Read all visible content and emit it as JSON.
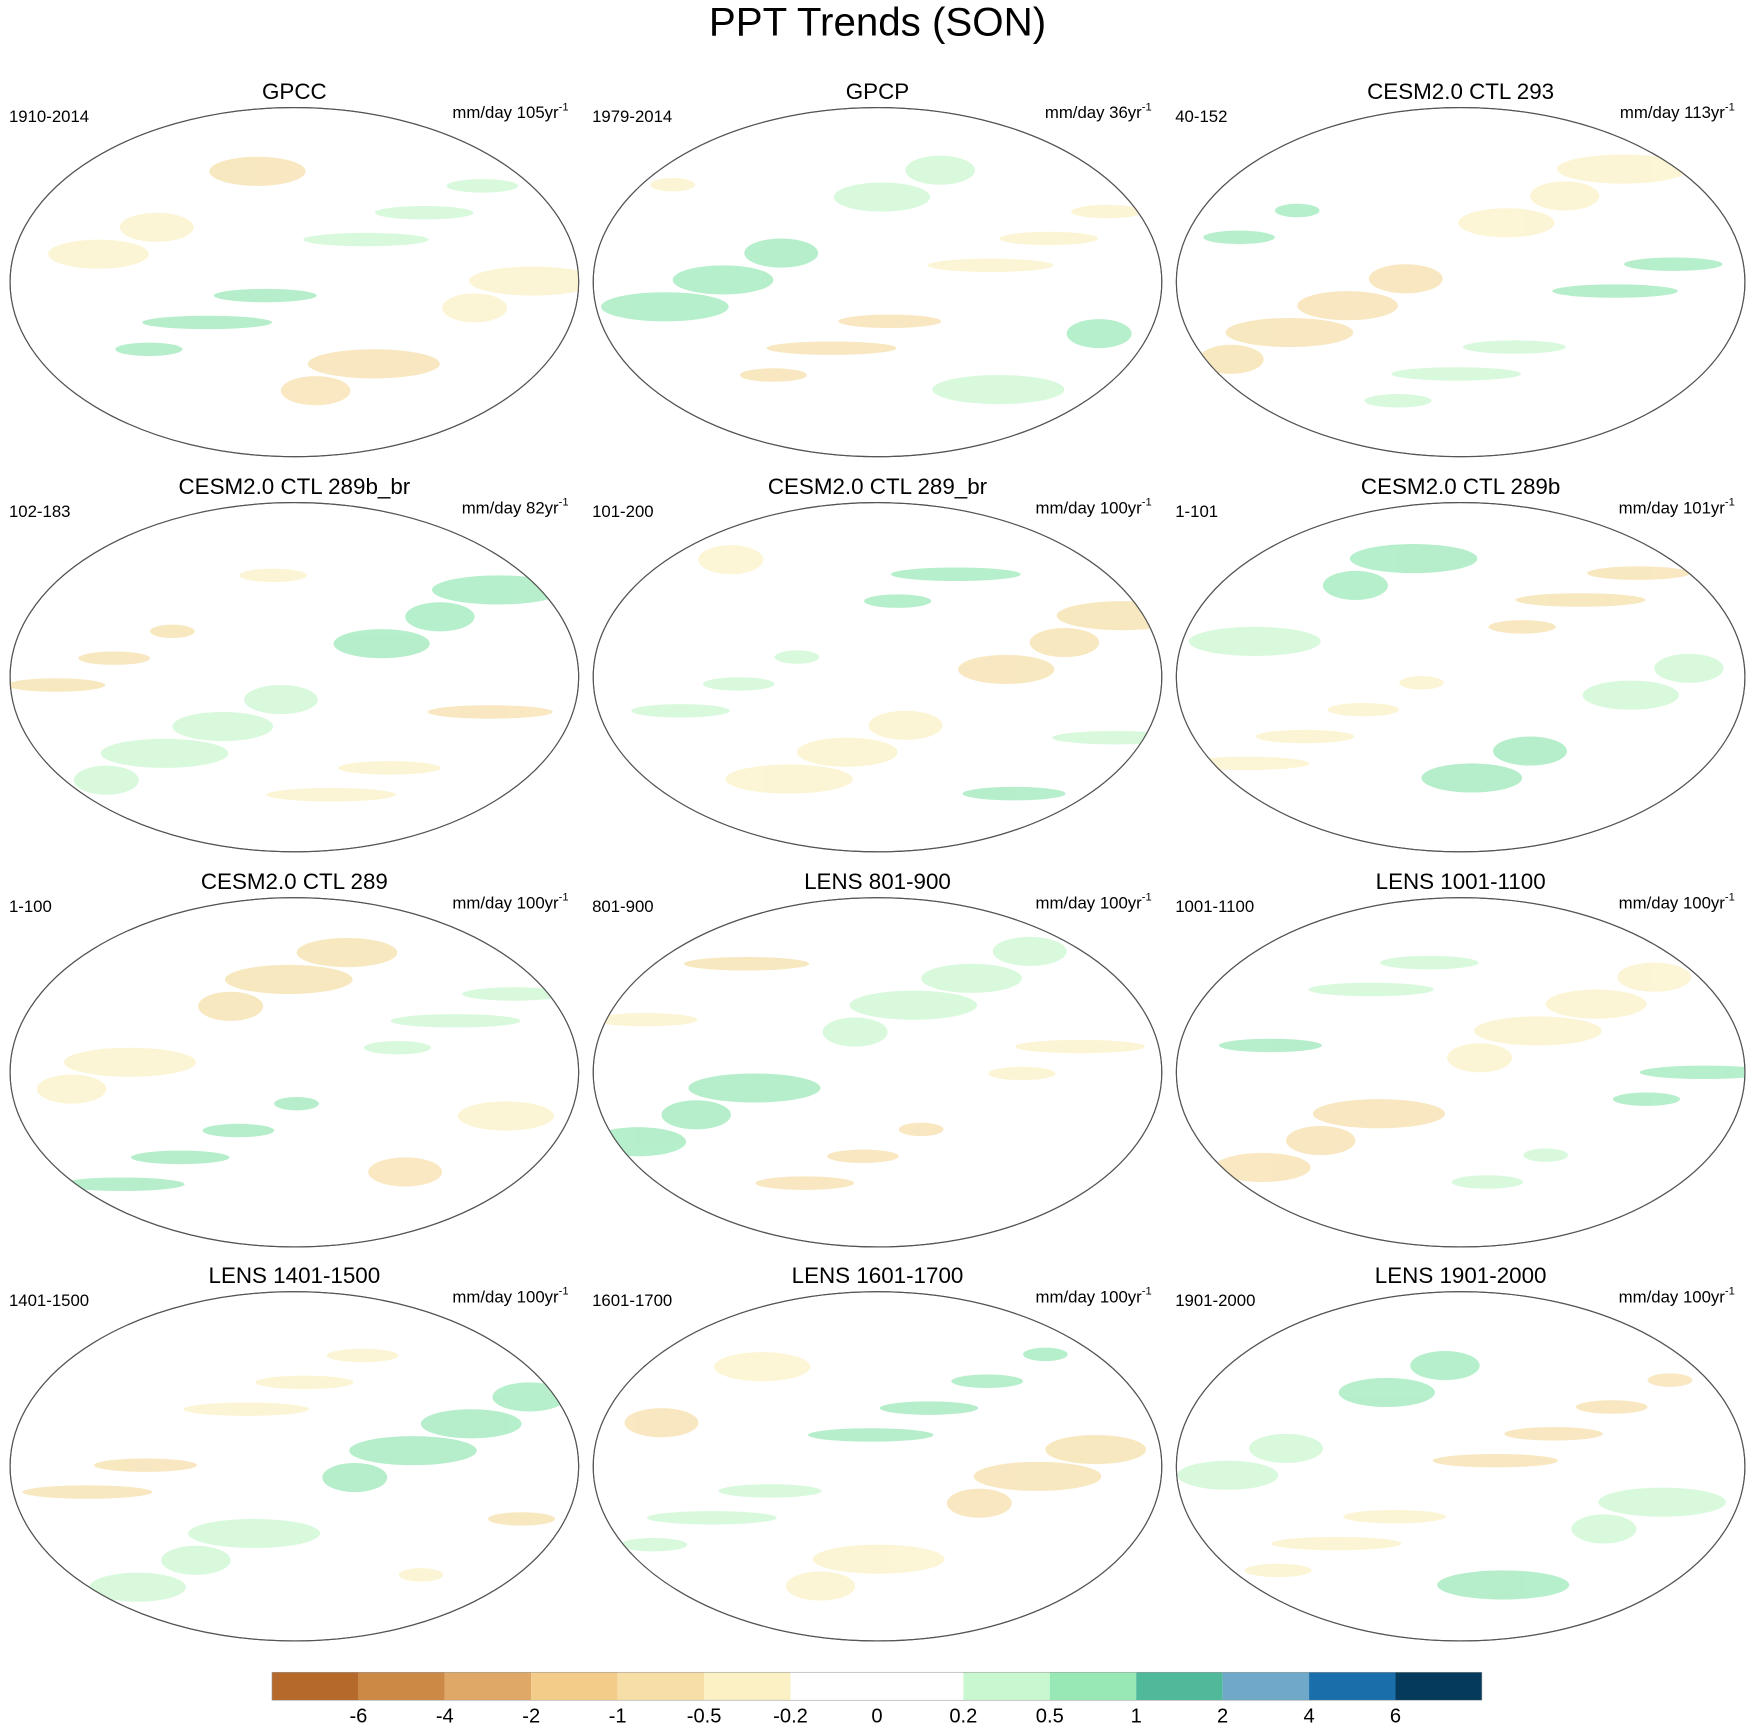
{
  "title": "PPT Trends (SON)",
  "panels": [
    {
      "title": "GPCC",
      "period": "1910-2014",
      "units": "mm/day 105yr",
      "units_exp": "-1"
    },
    {
      "title": "GPCP",
      "period": "1979-2014",
      "units": "mm/day 36yr",
      "units_exp": "-1"
    },
    {
      "title": "CESM2.0 CTL 293",
      "period": "40-152",
      "units": "mm/day 113yr",
      "units_exp": "-1"
    },
    {
      "title": "CESM2.0 CTL 289b_br",
      "period": "102-183",
      "units": "mm/day 82yr",
      "units_exp": "-1"
    },
    {
      "title": "CESM2.0 CTL 289_br",
      "period": "101-200",
      "units": "mm/day 100yr",
      "units_exp": "-1"
    },
    {
      "title": "CESM2.0 CTL 289b",
      "period": "1-101",
      "units": "mm/day 101yr",
      "units_exp": "-1"
    },
    {
      "title": "CESM2.0 CTL 289",
      "period": "1-100",
      "units": "mm/day 100yr",
      "units_exp": "-1"
    },
    {
      "title": "LENS 801-900",
      "period": "801-900",
      "units": "mm/day 100yr",
      "units_exp": "-1"
    },
    {
      "title": "LENS 1001-1100",
      "period": "1001-1100",
      "units": "mm/day 100yr",
      "units_exp": "-1"
    },
    {
      "title": "LENS 1401-1500",
      "period": "1401-1500",
      "units": "mm/day 100yr",
      "units_exp": "-1"
    },
    {
      "title": "LENS 1601-1700",
      "period": "1601-1700",
      "units": "mm/day 100yr",
      "units_exp": "-1"
    },
    {
      "title": "LENS 1901-2000",
      "period": "1901-2000",
      "units": "mm/day 100yr",
      "units_exp": "-1"
    }
  ],
  "colorbar": {
    "levels": [
      -6,
      -4,
      -2,
      -1,
      -0.5,
      -0.2,
      0,
      0.2,
      0.5,
      1,
      2,
      4,
      6
    ],
    "colors": [
      "#b5692a",
      "#cc8845",
      "#dfa866",
      "#f2cc88",
      "#f6dea6",
      "#fbf1c4",
      "#ffffff",
      "#ffffff",
      "#c9f7cf",
      "#98e8b6",
      "#4fb99a",
      "#6fa8c8",
      "#1a6fab",
      "#053a5c"
    ]
  }
}
